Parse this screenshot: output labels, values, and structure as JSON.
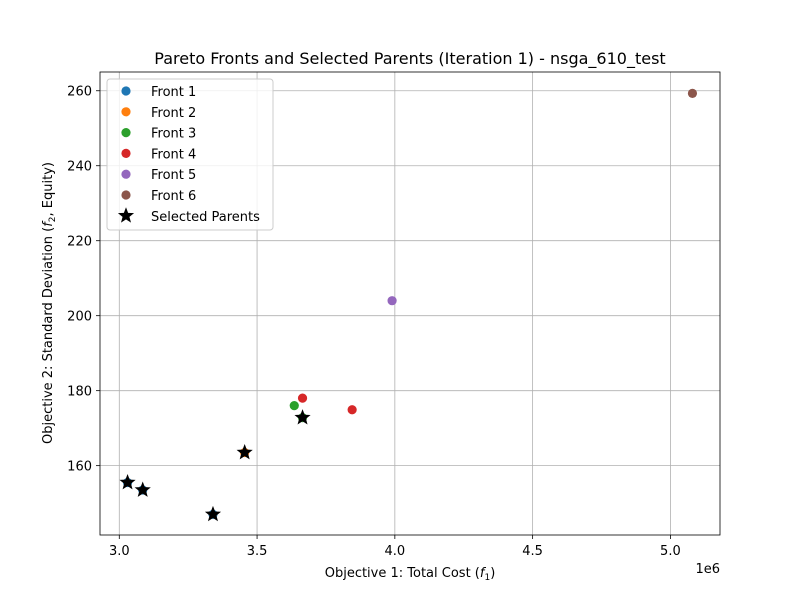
{
  "chart_data": {
    "type": "scatter",
    "title": "Pareto Fronts and Selected Parents (Iteration 1) - nsga_610_test",
    "xlabel": "Objective 1: Total Cost (f1)",
    "ylabel": "Objective 2: Standard Deviation (f2, Equity)",
    "x_offset_label": "1e6",
    "xlim": [
      2.93,
      5.18
    ],
    "ylim": [
      141.5,
      265.0
    ],
    "xticks": [
      3.0,
      3.5,
      4.0,
      4.5,
      5.0
    ],
    "xtick_labels": [
      "3.0",
      "3.5",
      "4.0",
      "4.5",
      "5.0"
    ],
    "yticks": [
      160,
      180,
      200,
      220,
      240,
      260
    ],
    "ytick_labels": [
      "160",
      "180",
      "200",
      "220",
      "240",
      "260"
    ],
    "grid": true,
    "legend_position": "upper-left",
    "series": [
      {
        "name": "Front 1",
        "color": "#1f77b4",
        "marker": "circle",
        "points": [
          {
            "x": 3.03,
            "y": 155.5
          },
          {
            "x": 3.085,
            "y": 153.5
          },
          {
            "x": 3.34,
            "y": 147.0
          }
        ]
      },
      {
        "name": "Front 2",
        "color": "#ff7f0e",
        "marker": "circle",
        "points": [
          {
            "x": 3.455,
            "y": 163.5
          }
        ]
      },
      {
        "name": "Front 3",
        "color": "#2ca02c",
        "marker": "circle",
        "points": [
          {
            "x": 3.635,
            "y": 176.0
          },
          {
            "x": 3.665,
            "y": 172.8
          }
        ]
      },
      {
        "name": "Front 4",
        "color": "#d62728",
        "marker": "circle",
        "points": [
          {
            "x": 3.665,
            "y": 178.0
          },
          {
            "x": 3.845,
            "y": 174.9
          }
        ]
      },
      {
        "name": "Front 5",
        "color": "#9467bd",
        "marker": "circle",
        "points": [
          {
            "x": 3.99,
            "y": 204.0
          }
        ]
      },
      {
        "name": "Front 6",
        "color": "#8c564b",
        "marker": "circle",
        "points": [
          {
            "x": 5.08,
            "y": 259.3
          }
        ]
      },
      {
        "name": "Selected Parents",
        "color": "#000000",
        "marker": "star",
        "points": [
          {
            "x": 3.03,
            "y": 155.5
          },
          {
            "x": 3.085,
            "y": 153.5
          },
          {
            "x": 3.34,
            "y": 147.0
          },
          {
            "x": 3.455,
            "y": 163.5
          },
          {
            "x": 3.665,
            "y": 172.8
          }
        ]
      }
    ]
  }
}
